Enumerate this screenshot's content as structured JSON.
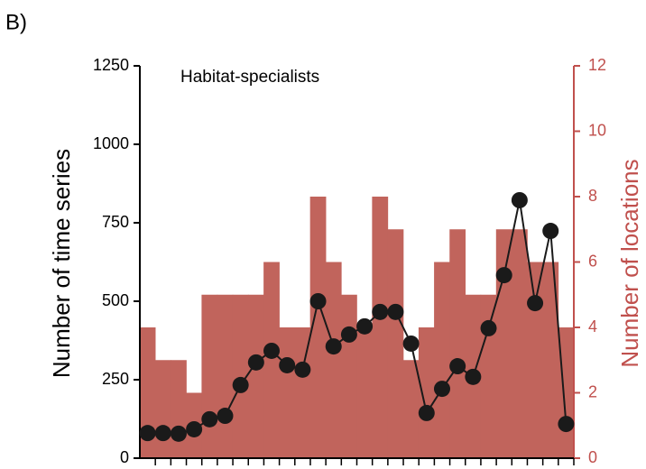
{
  "chart_data": {
    "type": "combo",
    "panel_label": "B)",
    "title": "Habitat-specialists",
    "y_label": "Number of time series",
    "y2_label": "Number of locations",
    "categories": [
      null,
      null,
      null,
      null,
      null,
      null,
      null,
      null,
      null,
      null,
      null,
      null,
      null,
      null,
      null,
      null,
      null,
      null,
      null,
      null,
      null,
      null,
      null,
      null,
      null,
      null,
      null,
      null
    ],
    "series": [
      {
        "name": "Number of locations",
        "type": "bar",
        "axis": "y2",
        "color": "#c1645c",
        "values": [
          4,
          3,
          3,
          2,
          5,
          5,
          5,
          5,
          6,
          4,
          4,
          8,
          6,
          5,
          4,
          8,
          7,
          3,
          4,
          6,
          7,
          5,
          5,
          7,
          7,
          6,
          6,
          4
        ]
      },
      {
        "name": "Number of time series",
        "type": "line",
        "axis": "y",
        "color": "#1a1a1a",
        "values": [
          80,
          80,
          78,
          92,
          124,
          135,
          233,
          305,
          342,
          296,
          282,
          500,
          356,
          394,
          420,
          466,
          466,
          365,
          144,
          221,
          293,
          259,
          414,
          583,
          822,
          494,
          724,
          109
        ]
      }
    ],
    "ylim": [
      0,
      1250
    ],
    "yticks": [
      0,
      250,
      500,
      750,
      1000,
      1250
    ],
    "y2lim": [
      0,
      12
    ],
    "y2ticks": [
      0,
      2,
      4,
      6,
      8,
      10,
      12
    ],
    "y2_color": "#c0504d"
  }
}
